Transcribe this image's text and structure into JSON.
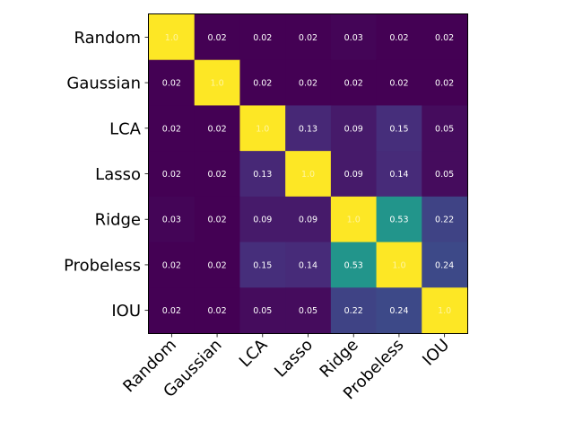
{
  "chart_data": {
    "type": "heatmap",
    "title": "",
    "labels": [
      "Random",
      "Gaussian",
      "LCA",
      "Lasso",
      "Ridge",
      "Probeless",
      "IOU"
    ],
    "matrix": [
      [
        1.0,
        0.02,
        0.02,
        0.02,
        0.03,
        0.02,
        0.02
      ],
      [
        0.02,
        1.0,
        0.02,
        0.02,
        0.02,
        0.02,
        0.02
      ],
      [
        0.02,
        0.02,
        1.0,
        0.13,
        0.09,
        0.15,
        0.05
      ],
      [
        0.02,
        0.02,
        0.13,
        1.0,
        0.09,
        0.14,
        0.05
      ],
      [
        0.03,
        0.02,
        0.09,
        0.09,
        1.0,
        0.53,
        0.22
      ],
      [
        0.02,
        0.02,
        0.15,
        0.14,
        0.53,
        1.0,
        0.24
      ],
      [
        0.02,
        0.02,
        0.05,
        0.05,
        0.22,
        0.24,
        1.0
      ]
    ],
    "cell_text": [
      [
        "1.0",
        "0.02",
        "0.02",
        "0.02",
        "0.03",
        "0.02",
        "0.02"
      ],
      [
        "0.02",
        "1.0",
        "0.02",
        "0.02",
        "0.02",
        "0.02",
        "0.02"
      ],
      [
        "0.02",
        "0.02",
        "1.0",
        "0.13",
        "0.09",
        "0.15",
        "0.05"
      ],
      [
        "0.02",
        "0.02",
        "0.13",
        "1.0",
        "0.09",
        "0.14",
        "0.05"
      ],
      [
        "0.03",
        "0.02",
        "0.09",
        "0.09",
        "1.0",
        "0.53",
        "0.22"
      ],
      [
        "0.02",
        "0.02",
        "0.15",
        "0.14",
        "0.53",
        "1.0",
        "0.24"
      ],
      [
        "0.02",
        "0.02",
        "0.05",
        "0.05",
        "0.22",
        "0.24",
        "1.0"
      ]
    ],
    "colormap": "viridis",
    "vmin": 0.02,
    "vmax": 1.0,
    "text_color_default": "#ffffff",
    "text_color_on_max": "#fff5a0"
  }
}
